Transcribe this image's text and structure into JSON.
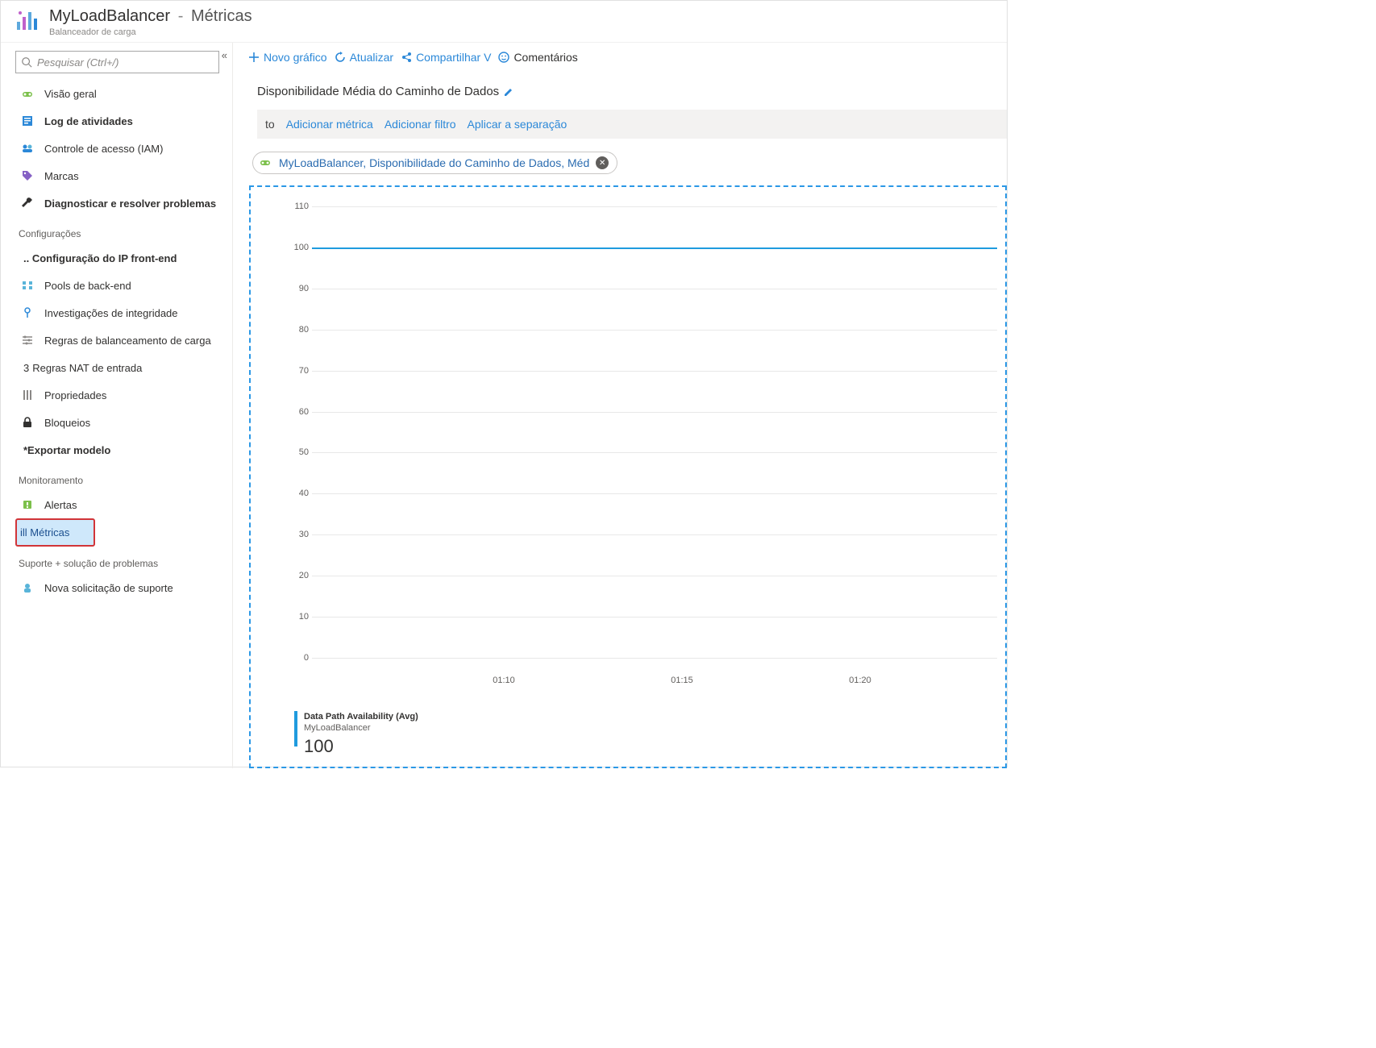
{
  "header": {
    "title": "MyLoadBalancer",
    "separator": "-",
    "subtitle": "Métricas",
    "resource_type": "Balanceador de carga"
  },
  "search": {
    "placeholder": "Pesquisar (Ctrl+/)"
  },
  "sidebar": {
    "items": [
      {
        "label": "Visão geral",
        "icon": "lb"
      },
      {
        "label": "Log de atividades",
        "icon": "log",
        "bold": true
      },
      {
        "label": "Controle de acesso (IAM)",
        "icon": "iam"
      },
      {
        "label": "Marcas",
        "icon": "tag"
      },
      {
        "label": "Diagnosticar e resolver problemas",
        "icon": "wrench",
        "bold": true
      }
    ],
    "section_settings": "Configurações",
    "settings": [
      {
        "label": ".. Configuração do IP front-end",
        "icon": "",
        "bold": true
      },
      {
        "label": "Pools de back-end",
        "icon": "pool"
      },
      {
        "label": "Investigações de integridade",
        "icon": "probe"
      },
      {
        "label": "Regras de balanceamento de carga",
        "icon": "rules"
      },
      {
        "label": "Regras NAT de entrada",
        "icon": "",
        "prefix": "3"
      },
      {
        "label": "Propriedades",
        "icon": "props"
      },
      {
        "label": "Bloqueios",
        "icon": "lock"
      },
      {
        "label": "*Exportar modelo",
        "icon": "",
        "bold": true
      }
    ],
    "section_monitoring": "Monitoramento",
    "monitoring": [
      {
        "label": "Alertas",
        "icon": "alert"
      },
      {
        "label": "ill Métricas",
        "icon": "",
        "active": true
      }
    ],
    "section_support": "Suporte +   solução de problemas",
    "support": [
      {
        "label": "Nova solicitação de suporte",
        "icon": "support"
      }
    ]
  },
  "toolbar": {
    "new_chart": "Novo gráfico",
    "refresh": "Atualizar",
    "share": "Compartilhar V",
    "comments": "Comentários"
  },
  "chart": {
    "title": "Disponibilidade Média do Caminho de Dados",
    "filterbar": {
      "add_metric_prefix": "to",
      "add_metric": "Adicionar métrica",
      "add_filter": "Adicionar filtro",
      "apply_split": "Aplicar a separação"
    },
    "pill": {
      "text": "MyLoadBalancer, Disponibilidade do Caminho de Dados, Méd"
    },
    "type": "line",
    "y_ticks": [
      110,
      100,
      90,
      80,
      70,
      60,
      50,
      40,
      30,
      20,
      10,
      0
    ],
    "ylim": [
      0,
      110
    ],
    "x_ticks": [
      "01:10",
      "01:15",
      "01:20"
    ],
    "x_positions_pct": [
      28,
      54,
      80
    ],
    "series": [
      {
        "name": "Data Path Availability (Avg)",
        "resource": "MyLoadBalancer",
        "value_display": "100",
        "color": "#1f9bde",
        "constant_value": 100
      }
    ],
    "style": {
      "grid_color": "#e8e8e8",
      "axis_font_size": 11,
      "dashed_border_color": "#2b98e6",
      "background": "#ffffff"
    }
  }
}
